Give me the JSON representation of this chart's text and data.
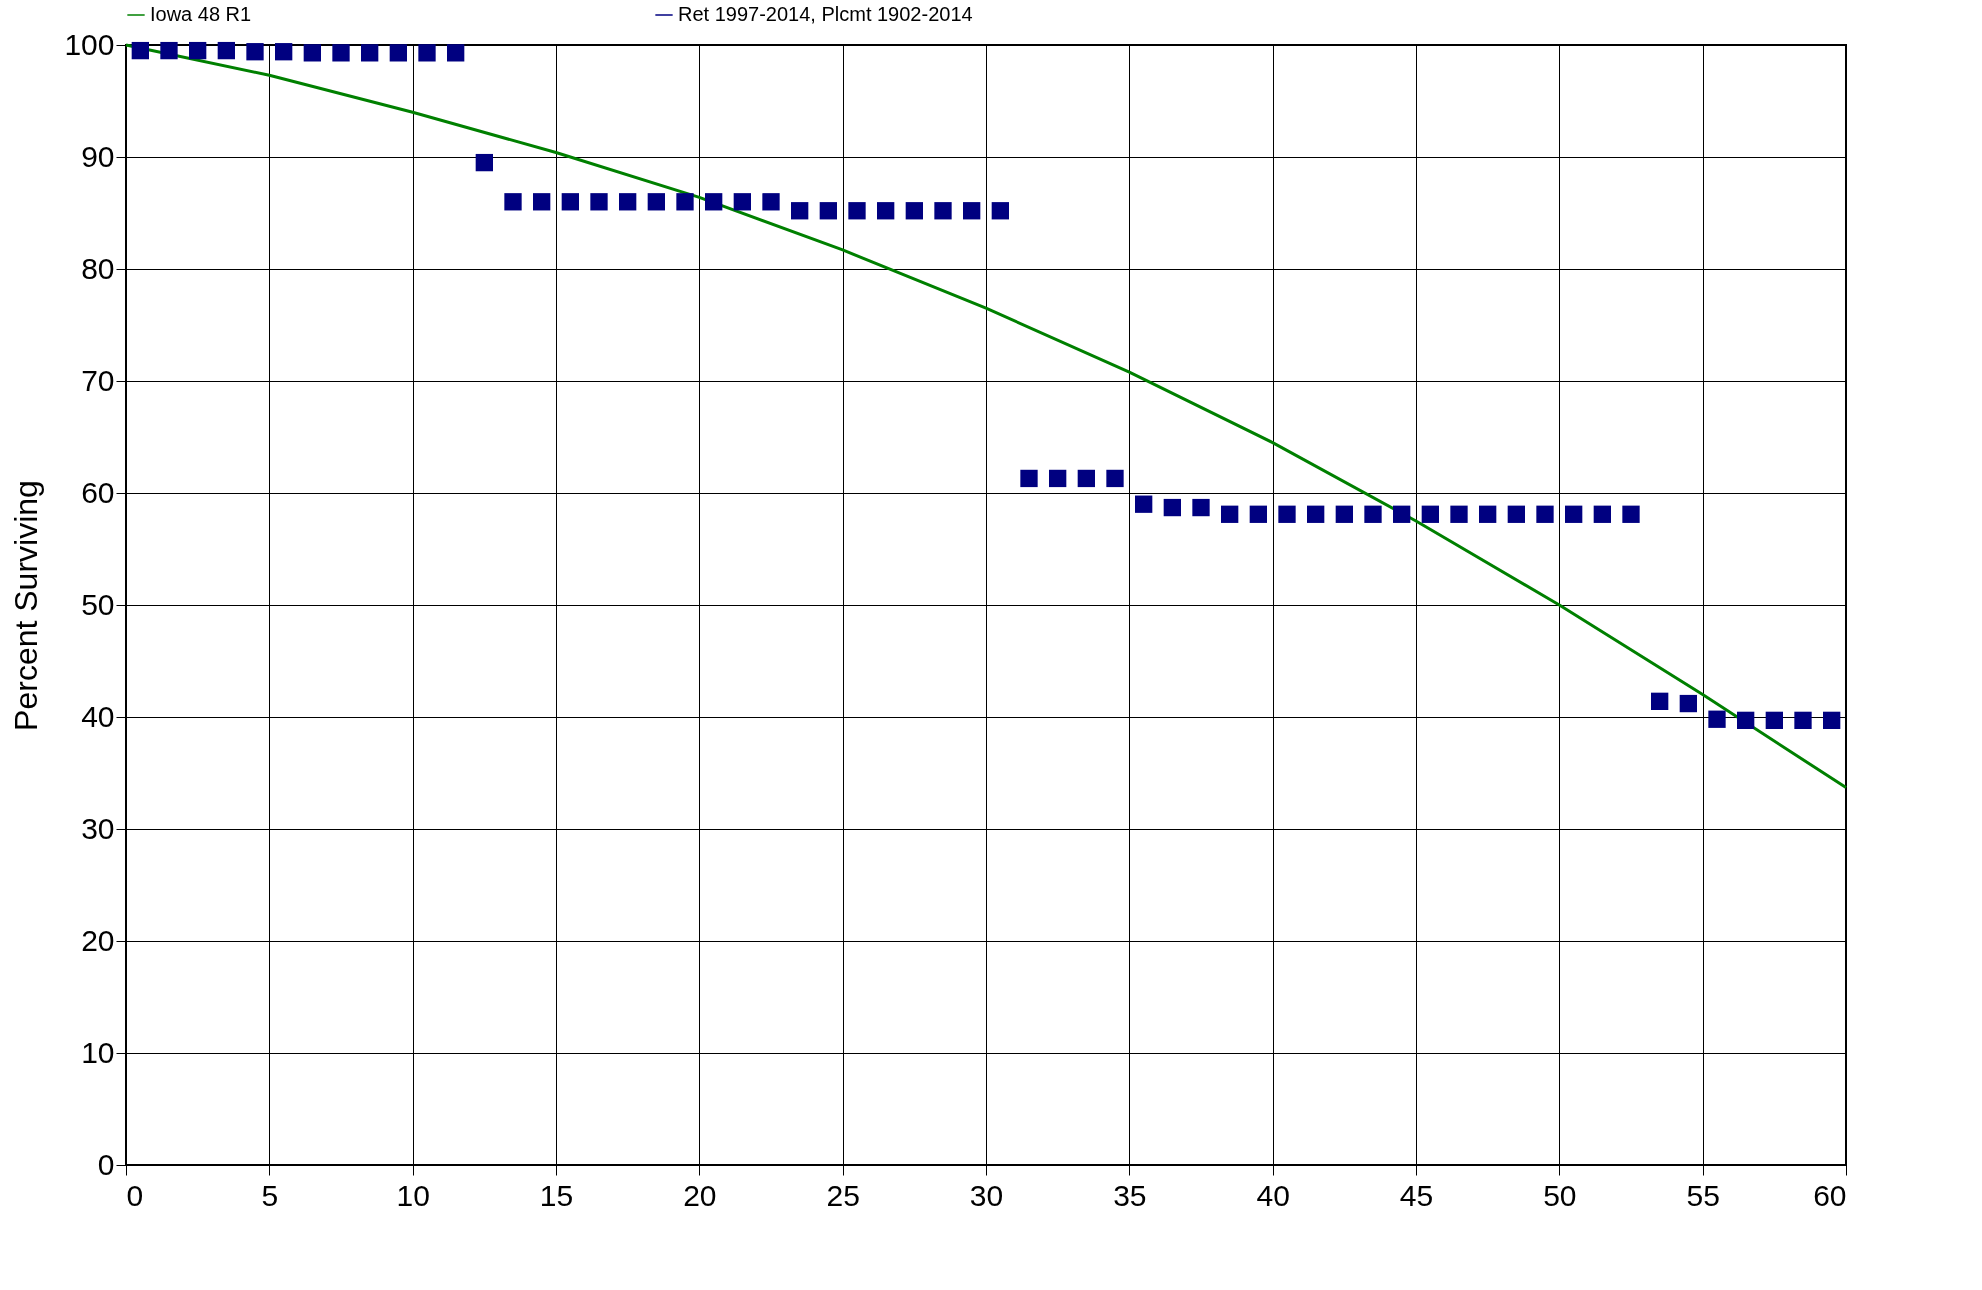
{
  "chart_data": {
    "type": "scatter",
    "ylabel": "Percent Surviving",
    "xlim": [
      0,
      60
    ],
    "ylim": [
      0,
      100
    ],
    "xticks": [
      0,
      5,
      10,
      15,
      20,
      25,
      30,
      35,
      40,
      45,
      50,
      55,
      60
    ],
    "yticks": [
      0,
      10,
      20,
      30,
      40,
      50,
      60,
      70,
      80,
      90,
      100
    ],
    "grid": true,
    "legend": "top",
    "series": [
      {
        "name": "Iowa 48 R1",
        "type": "line",
        "color": "#008000",
        "x": [
          0,
          5,
          10,
          15,
          20,
          25,
          30,
          35,
          40,
          45,
          50,
          55,
          60
        ],
        "values": [
          100,
          97.3,
          94,
          90.4,
          86.4,
          81.7,
          76.5,
          70.8,
          64.5,
          57.5,
          50,
          42,
          33.7
        ]
      },
      {
        "name": "Ret 1997-2014, Plcmt 1902-2014",
        "marker": "square",
        "color": "#000080",
        "x": [
          0.5,
          1.5,
          2.5,
          3.5,
          4.5,
          5.5,
          6.5,
          7.5,
          8.5,
          9.5,
          10.5,
          11.5,
          12.5,
          13.5,
          14.5,
          15.5,
          16.5,
          17.5,
          18.5,
          19.5,
          20.5,
          21.5,
          22.5,
          23.5,
          24.5,
          25.5,
          26.5,
          27.5,
          28.5,
          29.5,
          30.5,
          31.5,
          32.5,
          33.5,
          34.5,
          35.5,
          36.5,
          37.5,
          38.5,
          39.5,
          40.5,
          41.5,
          42.5,
          43.5,
          44.5,
          45.5,
          46.5,
          47.5,
          48.5,
          49.5,
          50.5,
          51.5,
          52.5,
          53.5,
          54.5,
          55.5,
          56.5,
          57.5,
          58.5,
          59.5
        ],
        "values": [
          99.5,
          99.5,
          99.5,
          99.5,
          99.4,
          99.4,
          99.3,
          99.3,
          99.3,
          99.3,
          99.3,
          99.3,
          89.5,
          86,
          86,
          86,
          86,
          86,
          86,
          86,
          86,
          86,
          86,
          85.2,
          85.2,
          85.2,
          85.2,
          85.2,
          85.2,
          85.2,
          85.2,
          61.3,
          61.3,
          61.3,
          61.3,
          59,
          58.7,
          58.7,
          58.1,
          58.1,
          58.1,
          58.1,
          58.1,
          58.1,
          58.1,
          58.1,
          58.1,
          58.1,
          58.1,
          58.1,
          58.1,
          58.1,
          58.1,
          41.4,
          41.2,
          39.8,
          39.7,
          39.7,
          39.7,
          39.7
        ]
      }
    ]
  }
}
